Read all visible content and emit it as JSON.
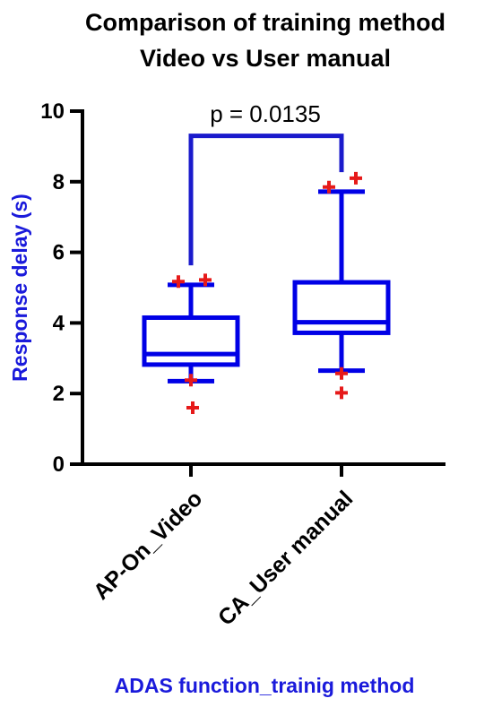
{
  "chart_data": {
    "type": "box",
    "title": "Comparison of training method",
    "subtitle": "Video vs User manual",
    "xlabel": "ADAS function_trainig method",
    "ylabel": "Response delay (s)",
    "ylim": [
      0,
      10
    ],
    "yticks": [
      0,
      2,
      4,
      6,
      8,
      10
    ],
    "categories": [
      "AP-On_Video",
      "CA_User manual"
    ],
    "boxes": [
      {
        "category": "AP-On_Video",
        "whisker_low": 2.35,
        "q1": 2.82,
        "median": 3.12,
        "q3": 4.15,
        "whisker_high": 5.08,
        "outliers": [
          1.6,
          2.38,
          5.17,
          5.22
        ]
      },
      {
        "category": "CA_User manual",
        "whisker_low": 2.65,
        "q1": 3.72,
        "median": 4.02,
        "q3": 5.15,
        "whisker_high": 7.72,
        "outliers": [
          2.02,
          2.57,
          7.85,
          8.1
        ]
      }
    ],
    "annotation": {
      "text": "p = 0.0135",
      "bracket_y": 9.3
    },
    "colors": {
      "box": "#0000e6",
      "outlier": "#e61a1a",
      "bracket": "#1a1acc",
      "axis_label": "#1a1adb",
      "axis": "#000000"
    },
    "grid": false,
    "legend": "none"
  }
}
